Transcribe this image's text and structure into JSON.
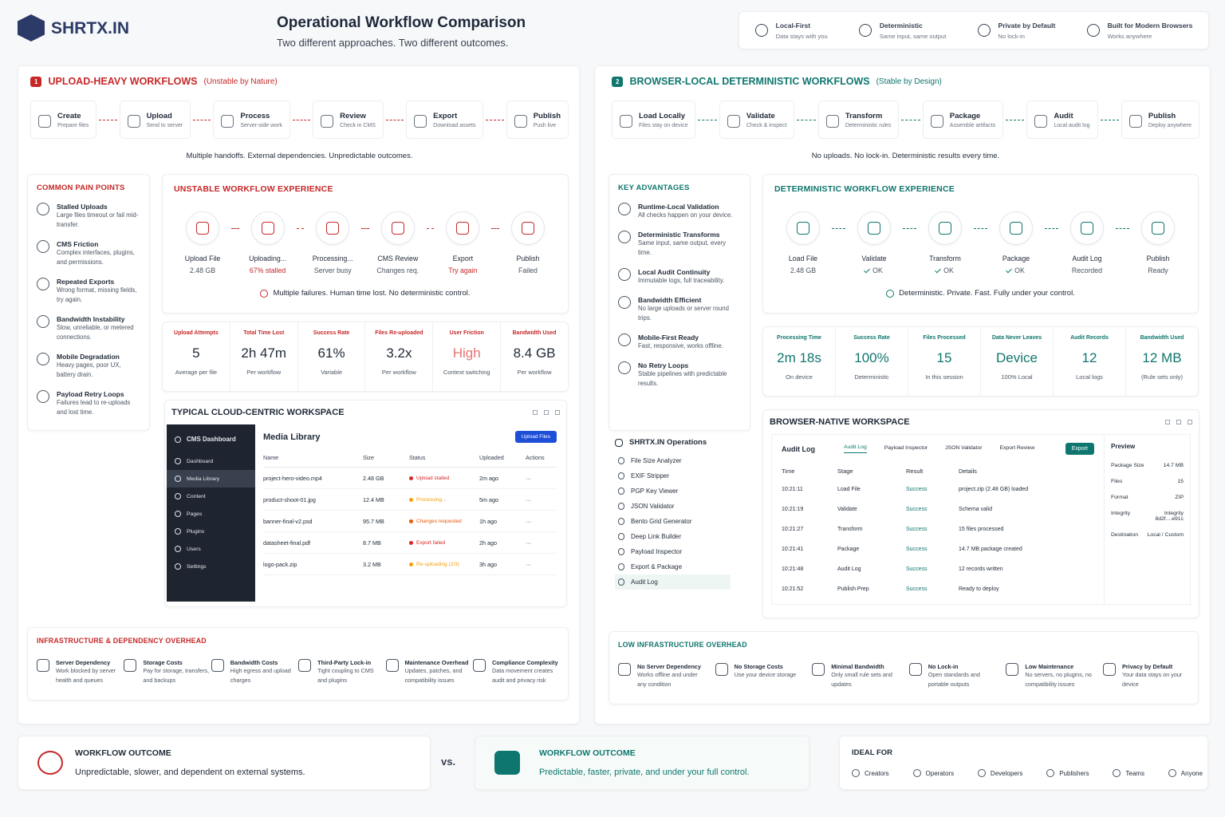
{
  "header": {
    "brand": "SHRTX.IN",
    "title": "Operational Workflow Comparison",
    "subtitle": "Two different approaches. Two different outcomes.",
    "features": [
      {
        "title": "Local-First",
        "desc": "Data stays with you"
      },
      {
        "title": "Deterministic",
        "desc": "Same input, same output"
      },
      {
        "title": "Private by Default",
        "desc": "No lock-in"
      },
      {
        "title": "Built for Modern Browsers",
        "desc": "Works anywhere"
      }
    ]
  },
  "left": {
    "badge": "1",
    "title": "UPLOAD-HEAVY WORKFLOWS",
    "qualifier": "(Unstable by Nature)",
    "steps": [
      {
        "title": "Create",
        "desc": "Prepare files"
      },
      {
        "title": "Upload",
        "desc": "Send to server"
      },
      {
        "title": "Process",
        "desc": "Server-side work"
      },
      {
        "title": "Review",
        "desc": "Check in CMS"
      },
      {
        "title": "Export",
        "desc": "Download assets"
      },
      {
        "title": "Publish",
        "desc": "Push live"
      }
    ],
    "caption": "Multiple handoffs. External dependencies. Unpredictable outcomes.",
    "list": {
      "title": "COMMON PAIN POINTS",
      "items": [
        {
          "title": "Stalled Uploads",
          "desc": "Large files timeout or fail mid-transfer."
        },
        {
          "title": "CMS Friction",
          "desc": "Complex interfaces, plugins, and permissions."
        },
        {
          "title": "Repeated Exports",
          "desc": "Wrong format, missing fields, try again."
        },
        {
          "title": "Bandwidth Instability",
          "desc": "Slow, unreliable, or metered connections."
        },
        {
          "title": "Mobile Degradation",
          "desc": "Heavy pages, poor UX, battery drain."
        },
        {
          "title": "Payload Retry Loops",
          "desc": "Failures lead to re-uploads and lost time."
        }
      ]
    },
    "experience": {
      "title": "UNSTABLE WORKFLOW EXPERIENCE",
      "steps": [
        {
          "label": "Upload File",
          "detail": "2.48 GB"
        },
        {
          "label": "Uploading...",
          "detail": "67% stalled"
        },
        {
          "label": "Processing...",
          "detail": "Server busy"
        },
        {
          "label": "CMS Review",
          "detail": "Changes req."
        },
        {
          "label": "Export",
          "detail": "Try again"
        },
        {
          "label": "Publish",
          "detail": "Failed"
        }
      ],
      "note": "Multiple failures. Human time lost. No deterministic control."
    },
    "metrics": [
      {
        "label": "Upload Attempts",
        "value": "5",
        "note": "Average per file"
      },
      {
        "label": "Total Time Lost",
        "value": "2h 47m",
        "note": "Per workflow"
      },
      {
        "label": "Success Rate",
        "value": "61%",
        "note": "Variable"
      },
      {
        "label": "Files Re-uploaded",
        "value": "3.2x",
        "note": "Per workflow"
      },
      {
        "label": "User Friction",
        "value": "High",
        "note": "Context switching"
      },
      {
        "label": "Bandwidth Used",
        "value": "8.4 GB",
        "note": "Per workflow"
      }
    ],
    "workspace": {
      "title": "TYPICAL CLOUD-CENTRIC WORKSPACE",
      "sidebar": [
        "CMS Dashboard",
        "Dashboard",
        "Media Library",
        "Content",
        "Pages",
        "Plugins",
        "Users",
        "Settings"
      ],
      "heading": "Media Library",
      "button": "Upload Files",
      "columns": [
        "Name",
        "Size",
        "Status",
        "Uploaded",
        "Actions"
      ],
      "rows": [
        [
          "project-hero-video.mp4",
          "2.48 GB",
          "Upload stalled",
          "2m ago",
          "···"
        ],
        [
          "product-shoot-01.jpg",
          "12.4 MB",
          "Processing...",
          "5m ago",
          "···"
        ],
        [
          "banner-final-v2.psd",
          "95.7 MB",
          "Changes requested",
          "1h ago",
          "···"
        ],
        [
          "datasheet-final.pdf",
          "8.7 MB",
          "Export failed",
          "2h ago",
          "···"
        ],
        [
          "logo-pack.zip",
          "3.2 MB",
          "Re-uploading (2/3)",
          "3h ago",
          "···"
        ]
      ]
    },
    "infra": {
      "title": "INFRASTRUCTURE & DEPENDENCY OVERHEAD",
      "items": [
        {
          "title": "Server Dependency",
          "desc": "Work blocked by server health and queues"
        },
        {
          "title": "Storage Costs",
          "desc": "Pay for storage, transfers, and backups"
        },
        {
          "title": "Bandwidth Costs",
          "desc": "High egress and upload charges"
        },
        {
          "title": "Third-Party Lock-in",
          "desc": "Tight coupling to CMS and plugins"
        },
        {
          "title": "Maintenance Overhead",
          "desc": "Updates, patches, and compatibility issues"
        },
        {
          "title": "Compliance Complexity",
          "desc": "Data movement creates audit and privacy risk"
        }
      ]
    }
  },
  "right": {
    "badge": "2",
    "title": "BROWSER-LOCAL DETERMINISTIC WORKFLOWS",
    "qualifier": "(Stable by Design)",
    "steps": [
      {
        "title": "Load Locally",
        "desc": "Files stay on device"
      },
      {
        "title": "Validate",
        "desc": "Check & inspect"
      },
      {
        "title": "Transform",
        "desc": "Deterministic rules"
      },
      {
        "title": "Package",
        "desc": "Assemble artifacts"
      },
      {
        "title": "Audit",
        "desc": "Local audit log"
      },
      {
        "title": "Publish",
        "desc": "Deploy anywhere"
      }
    ],
    "caption": "No uploads. No lock-in. Deterministic results every time.",
    "list": {
      "title": "KEY ADVANTAGES",
      "items": [
        {
          "title": "Runtime-Local Validation",
          "desc": "All checks happen on your device."
        },
        {
          "title": "Deterministic Transforms",
          "desc": "Same input, same output, every time."
        },
        {
          "title": "Local Audit Continuity",
          "desc": "Immutable logs, full traceability."
        },
        {
          "title": "Bandwidth Efficient",
          "desc": "No large uploads or server round trips."
        },
        {
          "title": "Mobile-First Ready",
          "desc": "Fast, responsive, works offline."
        },
        {
          "title": "No Retry Loops",
          "desc": "Stable pipelines with predictable results."
        }
      ]
    },
    "experience": {
      "title": "DETERMINISTIC WORKFLOW EXPERIENCE",
      "steps": [
        {
          "label": "Load File",
          "detail": "2.48 GB"
        },
        {
          "label": "Validate",
          "detail": "OK"
        },
        {
          "label": "Transform",
          "detail": "OK"
        },
        {
          "label": "Package",
          "detail": "OK"
        },
        {
          "label": "Audit Log",
          "detail": "Recorded"
        },
        {
          "label": "Publish",
          "detail": "Ready"
        }
      ],
      "note": "Deterministic. Private. Fast. Fully under your control."
    },
    "metrics": [
      {
        "label": "Processing Time",
        "value": "2m 18s",
        "note": "On device"
      },
      {
        "label": "Success Rate",
        "value": "100%",
        "note": "Deterministic"
      },
      {
        "label": "Files Processed",
        "value": "15",
        "note": "In this session"
      },
      {
        "label": "Data Never Leaves",
        "value": "Device",
        "note": "100% Local"
      },
      {
        "label": "Audit Records",
        "value": "12",
        "note": "Local logs"
      },
      {
        "label": "Bandwidth Used",
        "value": "12 MB",
        "note": "(Rule sets only)"
      }
    ],
    "operations": {
      "title": "SHRTX.IN Operations",
      "items": [
        "File Size Analyzer",
        "EXIF Stripper",
        "PGP Key Viewer",
        "JSON Validator",
        "Bento Grid Generator",
        "Deep Link Builder",
        "Payload Inspector",
        "Export & Package",
        "Audit Log"
      ]
    },
    "workspace": {
      "title": "BROWSER-NATIVE WORKSPACE",
      "heading": "Audit Log",
      "tabs": [
        "Audit Log",
        "Payload Inspector",
        "JSON Validator",
        "Export Review"
      ],
      "button": "Export",
      "columns": [
        "Time",
        "Stage",
        "Result",
        "Details"
      ],
      "rows": [
        [
          "10:21:11",
          "Load File",
          "Success",
          "project.zip (2.48 GB) loaded"
        ],
        [
          "10:21:19",
          "Validate",
          "Success",
          "Schema valid"
        ],
        [
          "10:21:27",
          "Transform",
          "Success",
          "15 files processed"
        ],
        [
          "10:21:41",
          "Package",
          "Success",
          "14.7 MB package created"
        ],
        [
          "10:21:48",
          "Audit Log",
          "Success",
          "12 records written"
        ],
        [
          "10:21:52",
          "Publish Prep",
          "Success",
          "Ready to deploy"
        ]
      ],
      "preview": {
        "title": "Preview",
        "rows": [
          [
            "Package Size",
            "14.7 MB"
          ],
          [
            "Files",
            "15"
          ],
          [
            "Format",
            "ZIP"
          ],
          [
            "Integrity",
            "Integrity 8d2f....e91c"
          ],
          [
            "Destination",
            "Local / Custom"
          ]
        ]
      }
    },
    "infra": {
      "title": "LOW INFRASTRUCTURE OVERHEAD",
      "items": [
        {
          "title": "No Server Dependency",
          "desc": "Works offline and under any condition"
        },
        {
          "title": "No Storage Costs",
          "desc": "Use your device storage"
        },
        {
          "title": "Minimal Bandwidth",
          "desc": "Only small rule sets and updates"
        },
        {
          "title": "No Lock-in",
          "desc": "Open standards and portable outputs"
        },
        {
          "title": "Low Maintenance",
          "desc": "No servers, no plugins, no compatibility issues"
        },
        {
          "title": "Privacy by Default",
          "desc": "Your data stays on your device"
        }
      ]
    }
  },
  "outcome": {
    "left": {
      "title": "WORKFLOW OUTCOME",
      "text": "Unpredictable, slower, and dependent on external systems."
    },
    "vs": "vs.",
    "right": {
      "title": "WORKFLOW OUTCOME",
      "text": "Predictable, faster, private, and under your full control."
    }
  },
  "ideal": {
    "title": "IDEAL FOR",
    "items": [
      "Creators",
      "Operators",
      "Developers",
      "Publishers",
      "Teams",
      "Anyone"
    ]
  }
}
